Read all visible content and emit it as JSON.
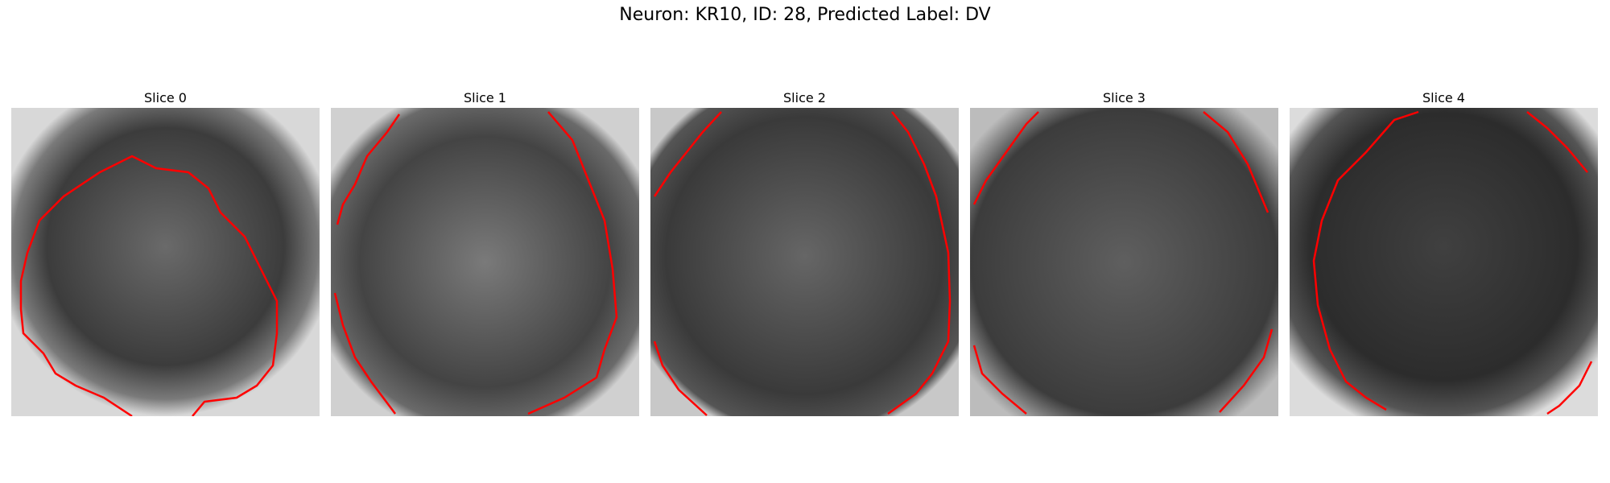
{
  "figure": {
    "title": "Neuron: KR10, ID: 28, Predicted Label: DV",
    "slices": [
      {
        "title": "Slice 0"
      },
      {
        "title": "Slice 1"
      },
      {
        "title": "Slice 2"
      },
      {
        "title": "Slice 3"
      },
      {
        "title": "Slice 4"
      }
    ]
  },
  "colors": {
    "contour": "#ff0000",
    "background": "#ffffff"
  }
}
